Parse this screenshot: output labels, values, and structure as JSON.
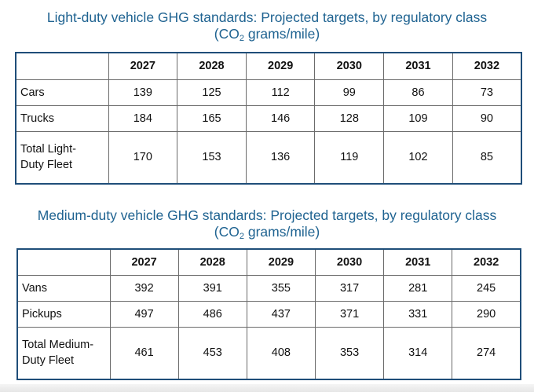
{
  "chart_data": [
    {
      "type": "table",
      "title_main": "Light-duty vehicle GHG standards: Projected targets, by regulatory class",
      "unit_open": "(CO",
      "unit_sub": "2",
      "unit_close": " grams/mile)",
      "columns": [
        "",
        "2027",
        "2028",
        "2029",
        "2030",
        "2031",
        "2032"
      ],
      "rows": [
        {
          "label": "Cars",
          "values": [
            "139",
            "125",
            "112",
            "99",
            "86",
            "73"
          ]
        },
        {
          "label": "Trucks",
          "values": [
            "184",
            "165",
            "146",
            "128",
            "109",
            "90"
          ]
        },
        {
          "label": "Total Light-Duty Fleet",
          "label_lines": [
            "Total Light-",
            "Duty Fleet"
          ],
          "values": [
            "170",
            "153",
            "136",
            "119",
            "102",
            "85"
          ]
        }
      ]
    },
    {
      "type": "table",
      "title_main": "Medium-duty vehicle GHG standards: Projected targets, by regulatory class",
      "unit_open": "(CO",
      "unit_sub": "2",
      "unit_close": " grams/mile)",
      "columns": [
        "",
        "2027",
        "2028",
        "2029",
        "2030",
        "2031",
        "2032"
      ],
      "rows": [
        {
          "label": "Vans",
          "values": [
            "392",
            "391",
            "355",
            "317",
            "281",
            "245"
          ]
        },
        {
          "label": "Pickups",
          "values": [
            "497",
            "486",
            "437",
            "371",
            "331",
            "290"
          ]
        },
        {
          "label": "Total Medium-Duty Fleet",
          "label_lines": [
            "Total Medium-",
            "Duty Fleet"
          ],
          "values": [
            "461",
            "453",
            "408",
            "353",
            "314",
            "274"
          ]
        }
      ]
    }
  ]
}
